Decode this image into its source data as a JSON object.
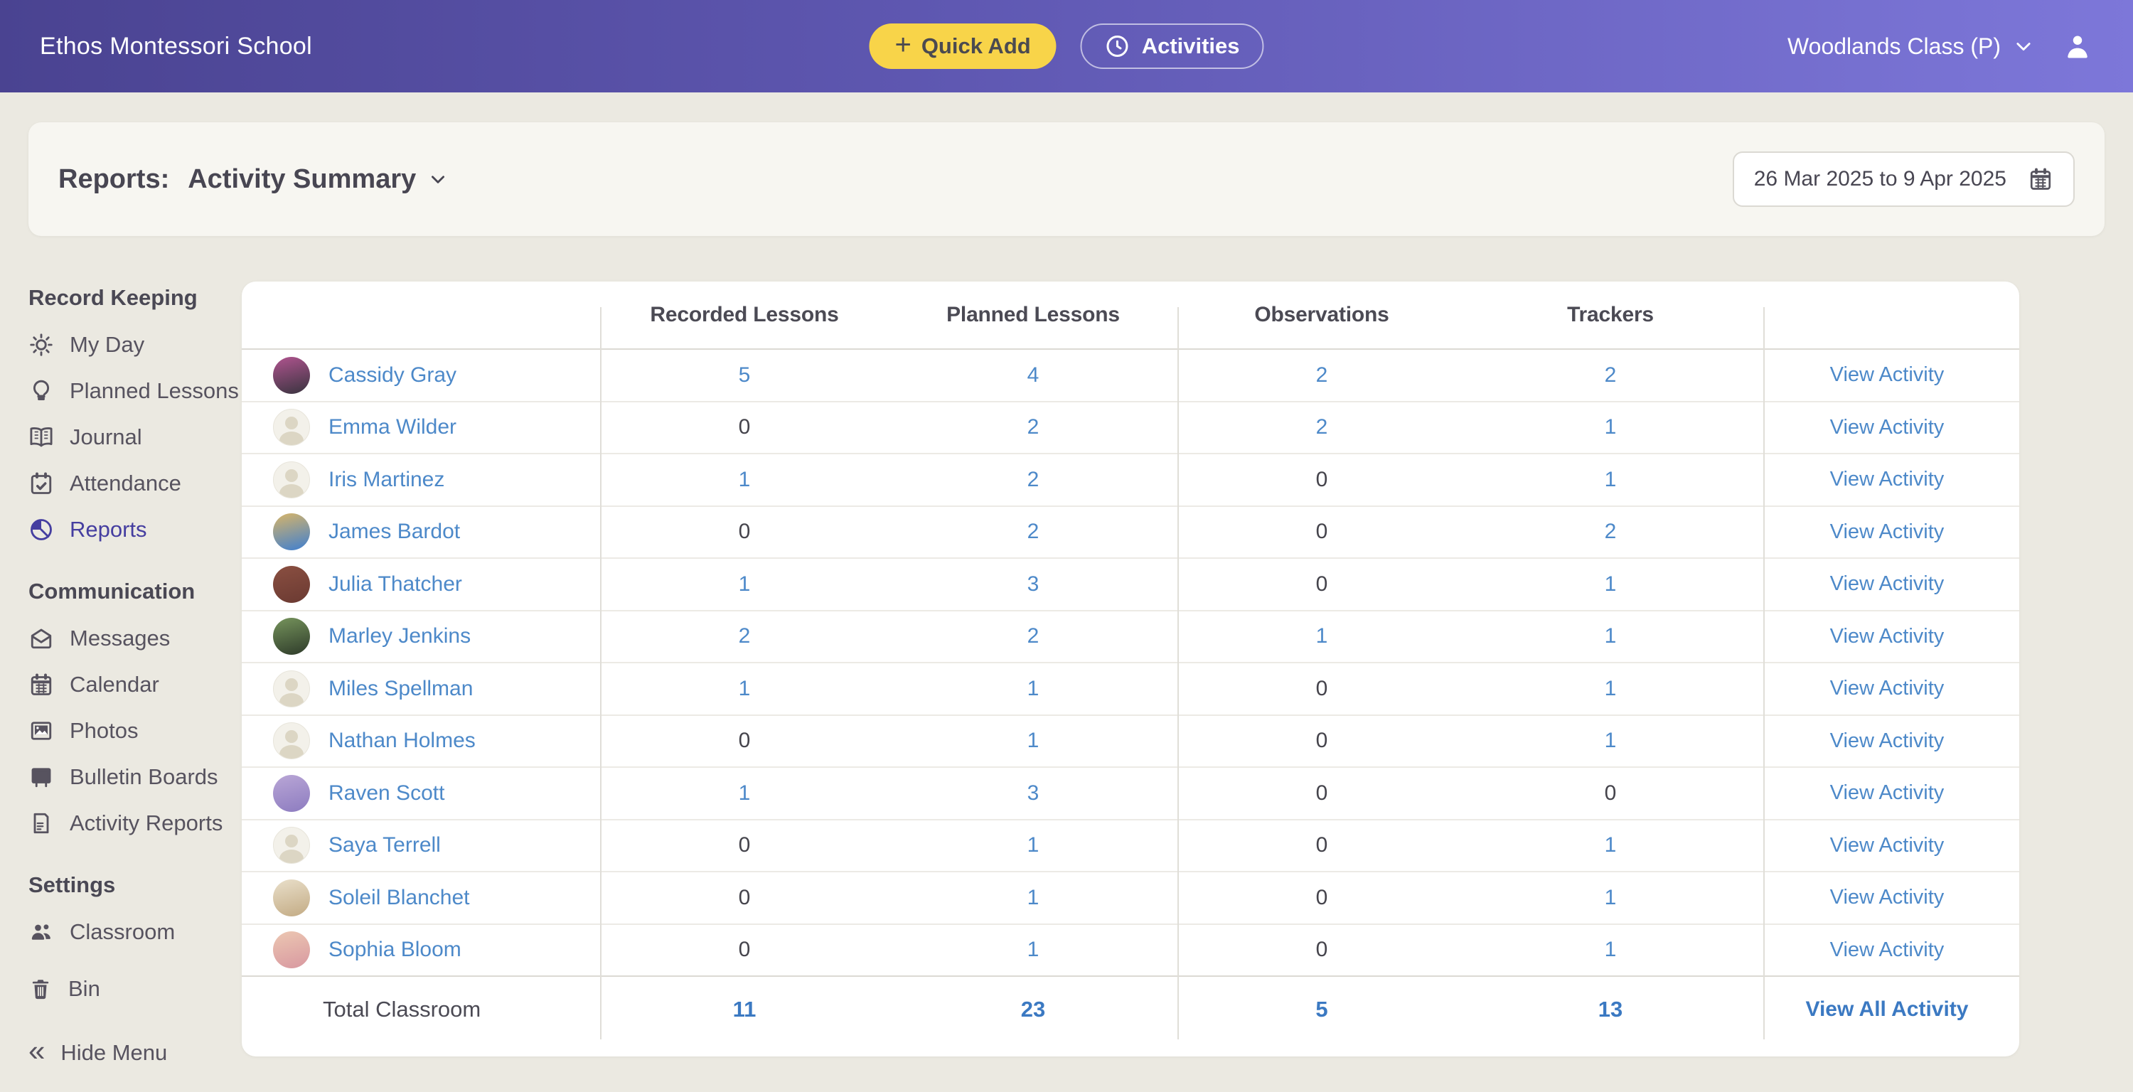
{
  "topbar": {
    "school_name": "Ethos Montessori School",
    "quick_add_label": "Quick Add",
    "activities_label": "Activities",
    "class_selector": "Woodlands Class (P)"
  },
  "header": {
    "reports_label": "Reports:",
    "report_type": "Activity Summary",
    "date_range": "26 Mar 2025 to 9 Apr 2025"
  },
  "sidebar": {
    "sections": [
      {
        "title": "Record Keeping",
        "items": [
          {
            "label": "My Day",
            "icon": "sun-icon",
            "active": false
          },
          {
            "label": "Planned Lessons",
            "icon": "lightbulb-icon",
            "active": false
          },
          {
            "label": "Journal",
            "icon": "book-icon",
            "active": false
          },
          {
            "label": "Attendance",
            "icon": "calendar-check-icon",
            "active": false
          },
          {
            "label": "Reports",
            "icon": "pie-chart-icon",
            "active": true
          }
        ]
      },
      {
        "title": "Communication",
        "items": [
          {
            "label": "Messages",
            "icon": "envelope-icon",
            "active": false
          },
          {
            "label": "Calendar",
            "icon": "calendar-icon",
            "active": false
          },
          {
            "label": "Photos",
            "icon": "photo-icon",
            "active": false
          },
          {
            "label": "Bulletin Boards",
            "icon": "bulletin-board-icon",
            "active": false
          },
          {
            "label": "Activity Reports",
            "icon": "document-icon",
            "active": false
          }
        ]
      },
      {
        "title": "Settings",
        "items": [
          {
            "label": "Classroom",
            "icon": "people-icon",
            "active": false
          }
        ]
      }
    ],
    "bin_label": "Bin",
    "hide_menu_label": "Hide Menu"
  },
  "table": {
    "columns": [
      "Recorded Lessons",
      "Planned Lessons",
      "Observations",
      "Trackers"
    ],
    "view_activity_label": "View Activity",
    "rows": [
      {
        "name": "Cassidy Gray",
        "recorded": 5,
        "planned": 4,
        "observations": 2,
        "trackers": 2,
        "avatar": {
          "kind": "photo",
          "c1": "#b0548f",
          "c2": "#39343f"
        }
      },
      {
        "name": "Emma Wilder",
        "recorded": 0,
        "planned": 2,
        "observations": 2,
        "trackers": 1,
        "avatar": {
          "kind": "placeholder"
        }
      },
      {
        "name": "Iris Martinez",
        "recorded": 1,
        "planned": 2,
        "observations": 0,
        "trackers": 1,
        "avatar": {
          "kind": "placeholder"
        }
      },
      {
        "name": "James Bardot",
        "recorded": 0,
        "planned": 2,
        "observations": 0,
        "trackers": 2,
        "avatar": {
          "kind": "photo",
          "c1": "#d8b568",
          "c2": "#3f7fd0"
        }
      },
      {
        "name": "Julia Thatcher",
        "recorded": 1,
        "planned": 3,
        "observations": 0,
        "trackers": 1,
        "avatar": {
          "kind": "photo",
          "c1": "#8a4f41",
          "c2": "#6b3a32"
        }
      },
      {
        "name": "Marley Jenkins",
        "recorded": 2,
        "planned": 2,
        "observations": 1,
        "trackers": 1,
        "avatar": {
          "kind": "photo",
          "c1": "#76945c",
          "c2": "#2e3b2a"
        }
      },
      {
        "name": "Miles Spellman",
        "recorded": 1,
        "planned": 1,
        "observations": 0,
        "trackers": 1,
        "avatar": {
          "kind": "placeholder"
        }
      },
      {
        "name": "Nathan Holmes",
        "recorded": 0,
        "planned": 1,
        "observations": 0,
        "trackers": 1,
        "avatar": {
          "kind": "placeholder"
        }
      },
      {
        "name": "Raven Scott",
        "recorded": 1,
        "planned": 3,
        "observations": 0,
        "trackers": 0,
        "avatar": {
          "kind": "photo",
          "c1": "#b9a6d6",
          "c2": "#8d7cc0"
        }
      },
      {
        "name": "Saya Terrell",
        "recorded": 0,
        "planned": 1,
        "observations": 0,
        "trackers": 1,
        "avatar": {
          "kind": "placeholder"
        }
      },
      {
        "name": "Soleil Blanchet",
        "recorded": 0,
        "planned": 1,
        "observations": 0,
        "trackers": 1,
        "avatar": {
          "kind": "photo",
          "c1": "#e9dfca",
          "c2": "#c3ab84"
        }
      },
      {
        "name": "Sophia Bloom",
        "recorded": 0,
        "planned": 1,
        "observations": 0,
        "trackers": 1,
        "avatar": {
          "kind": "photo",
          "c1": "#ecc7b2",
          "c2": "#d898a0"
        }
      }
    ],
    "total": {
      "label": "Total Classroom",
      "recorded": 11,
      "planned": 23,
      "observations": 5,
      "trackers": 13,
      "action": "View All Activity"
    }
  },
  "colors": {
    "accent_purple": "#453ea0",
    "link_blue": "#4d89c9",
    "totals_blue": "#3b79c2",
    "quick_add_yellow": "#f8d449",
    "topbar_gradient_start": "#4a4391",
    "topbar_gradient_end": "#7d77d9",
    "page_background": "#ebe9e1",
    "card_background": "#f7f6f1",
    "table_background": "#ffffff"
  }
}
